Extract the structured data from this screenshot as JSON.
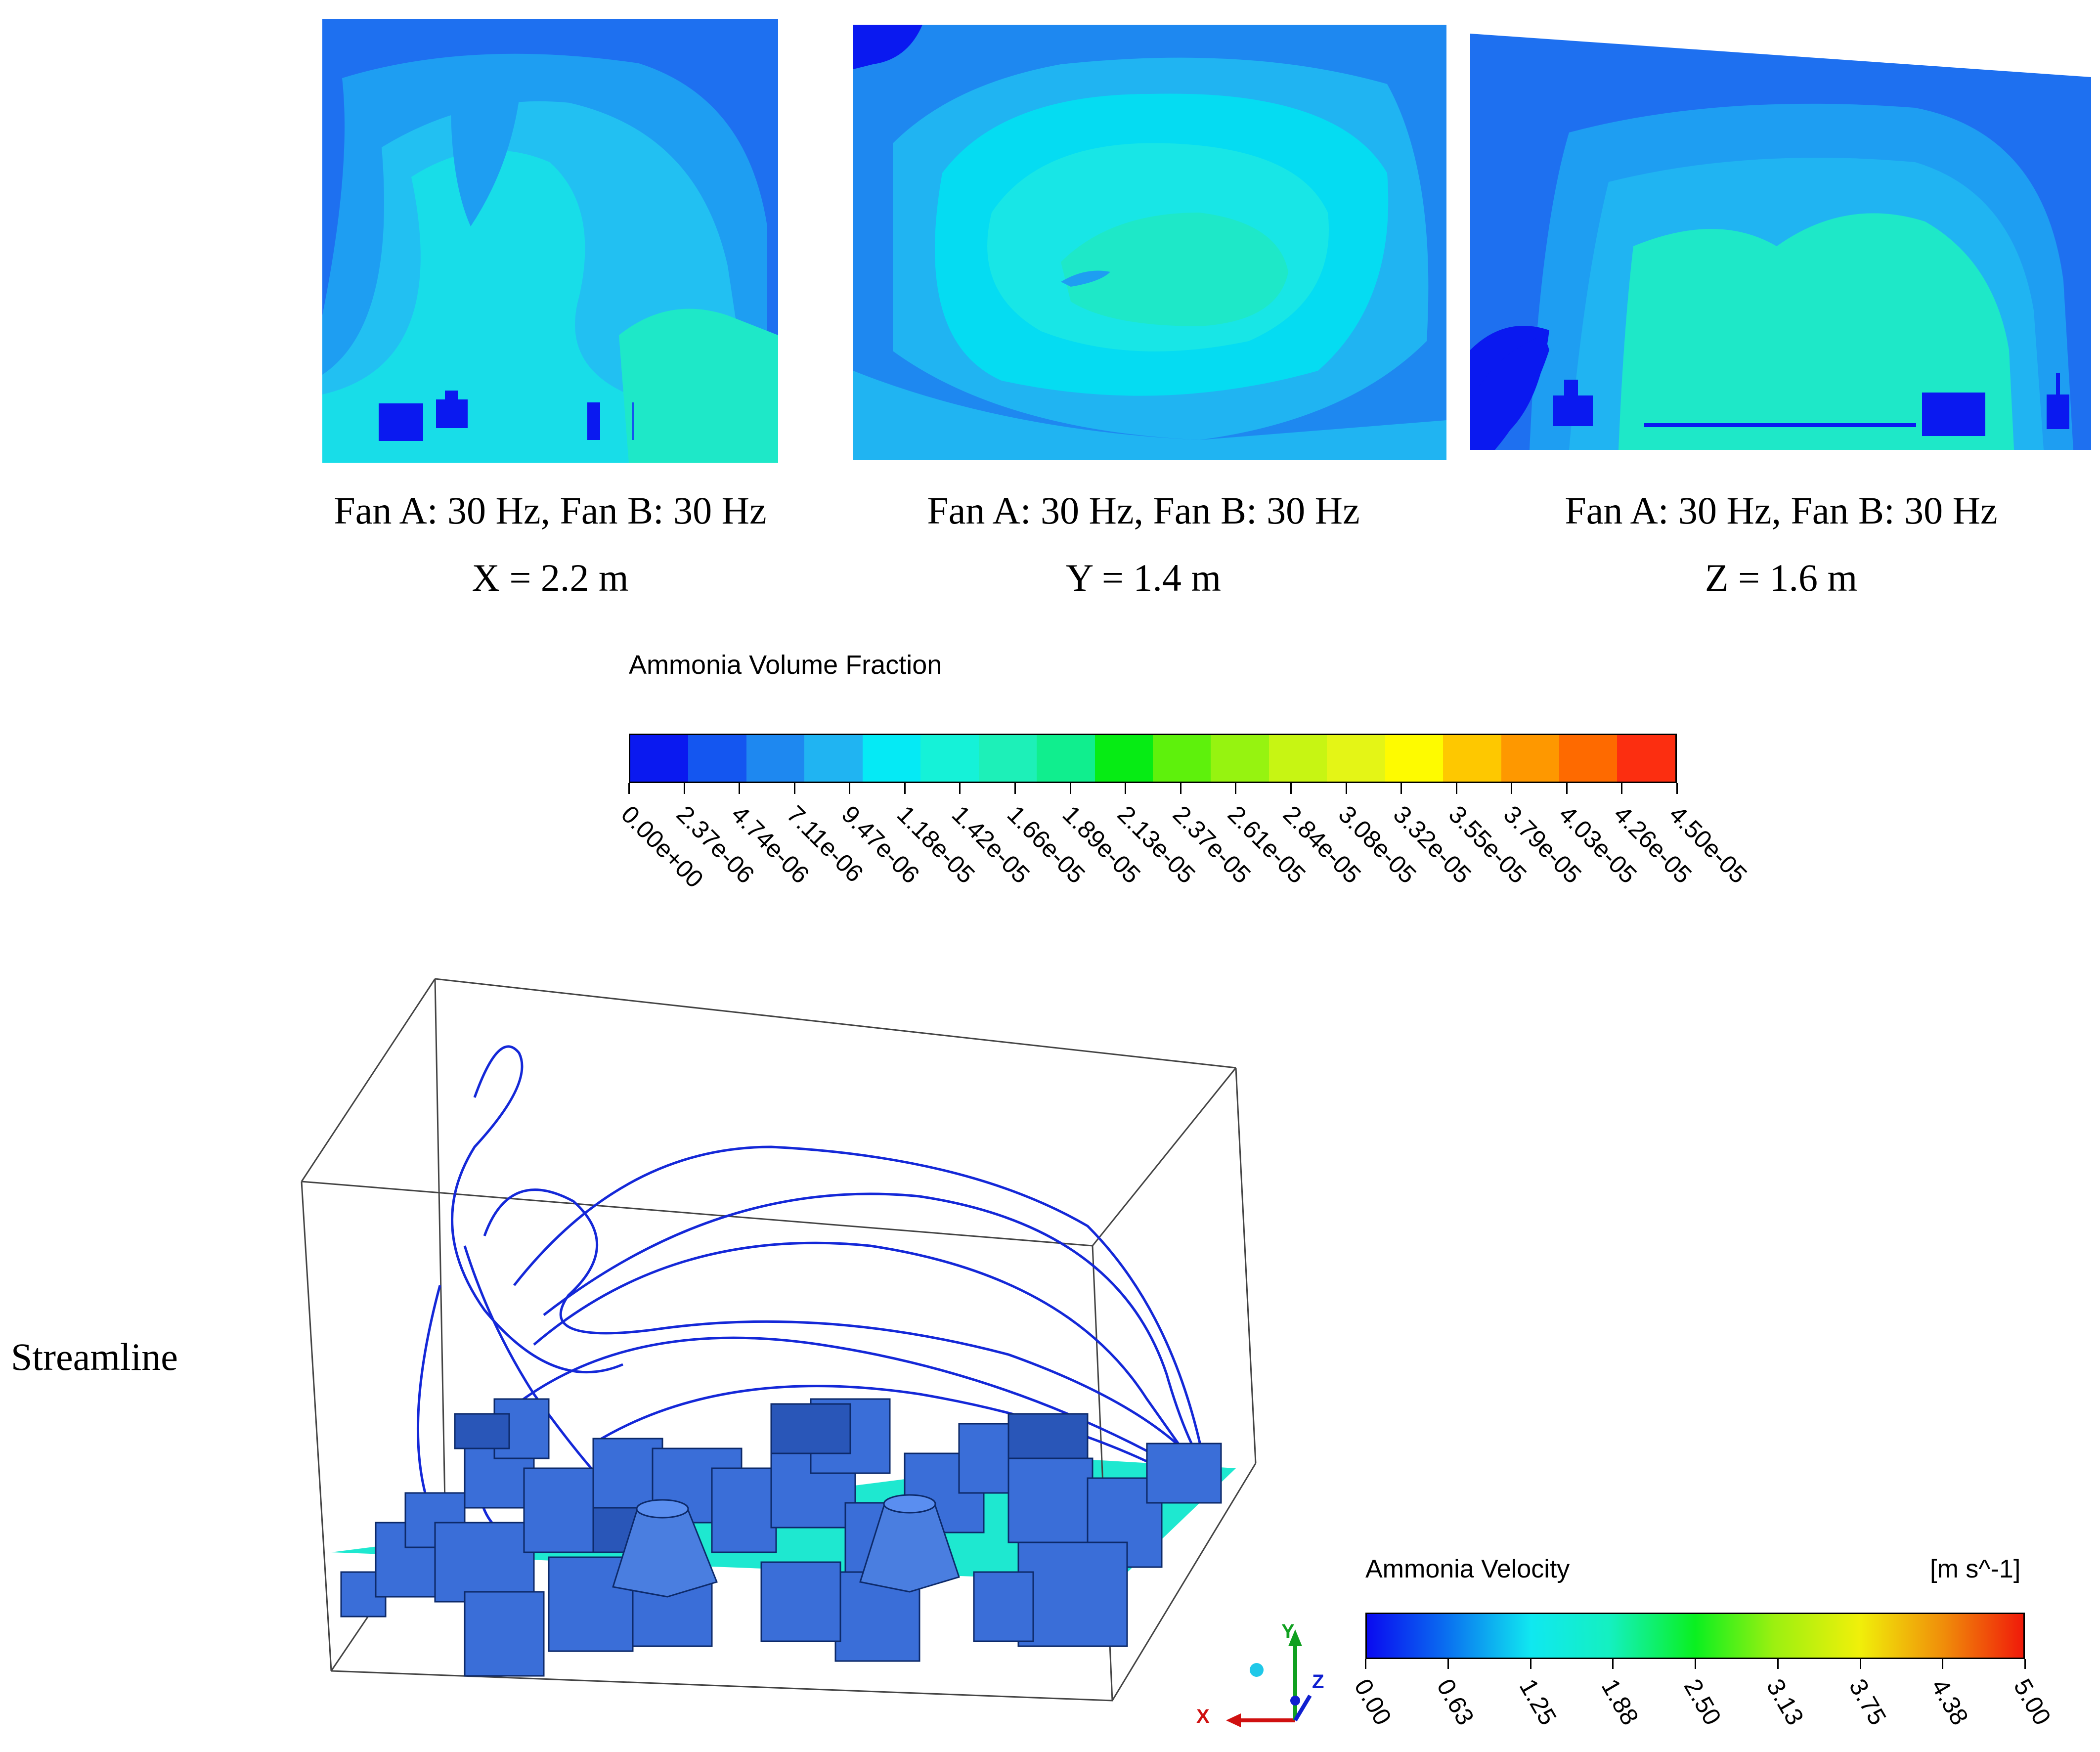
{
  "contour_panels": [
    {
      "line1": "Fan A: 30 Hz, Fan B: 30 Hz",
      "line2": "X = 2.2 m"
    },
    {
      "line1": "Fan A: 30 Hz, Fan B: 30 Hz",
      "line2": "Y = 1.4 m"
    },
    {
      "line1": "Fan A: 30 Hz, Fan B: 30 Hz",
      "line2": "Z = 1.6 m"
    }
  ],
  "volume_fraction_legend": {
    "title": "Ammonia Volume Fraction",
    "ticks": [
      "0.00e+00",
      "2.37e-06",
      "4.74e-06",
      "7.11e-06",
      "9.47e-06",
      "1.18e-05",
      "1.42e-05",
      "1.66e-05",
      "1.89e-05",
      "2.13e-05",
      "2.37e-05",
      "2.61e-05",
      "2.84e-05",
      "3.08e-05",
      "3.32e-05",
      "3.55e-05",
      "3.79e-05",
      "4.03e-05",
      "4.26e-05",
      "4.50e-05"
    ],
    "colors": [
      "#0a19f0",
      "#1456f0",
      "#1e88f0",
      "#20b4f2",
      "#05eaf5",
      "#15f2d8",
      "#1df0b8",
      "#10ee8e",
      "#06ec14",
      "#5ef10c",
      "#96f310",
      "#c7f513",
      "#e4f516",
      "#fefb00",
      "#fec800",
      "#fe9800",
      "#fe6a00",
      "#fc2e10"
    ]
  },
  "streamline": {
    "label": "Streamline",
    "axes": {
      "x": "X",
      "y": "Y",
      "z": "Z"
    }
  },
  "velocity_legend": {
    "title": "Ammonia Velocity",
    "unit": "[m s^-1]",
    "ticks": [
      "0.00",
      "0.63",
      "1.25",
      "1.88",
      "2.50",
      "3.13",
      "3.75",
      "4.38",
      "5.00"
    ]
  }
}
